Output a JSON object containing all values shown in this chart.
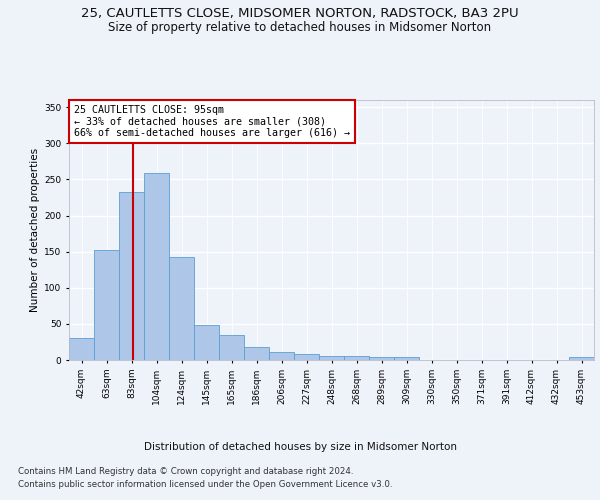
{
  "title1": "25, CAUTLETTS CLOSE, MIDSOMER NORTON, RADSTOCK, BA3 2PU",
  "title2": "Size of property relative to detached houses in Midsomer Norton",
  "xlabel": "Distribution of detached houses by size in Midsomer Norton",
  "ylabel": "Number of detached properties",
  "footer1": "Contains HM Land Registry data © Crown copyright and database right 2024.",
  "footer2": "Contains public sector information licensed under the Open Government Licence v3.0.",
  "annotation_title": "25 CAUTLETTS CLOSE: 95sqm",
  "annotation_line1": "← 33% of detached houses are smaller (308)",
  "annotation_line2": "66% of semi-detached houses are larger (616) →",
  "bar_labels": [
    "42sqm",
    "63sqm",
    "83sqm",
    "104sqm",
    "124sqm",
    "145sqm",
    "165sqm",
    "186sqm",
    "206sqm",
    "227sqm",
    "248sqm",
    "268sqm",
    "289sqm",
    "309sqm",
    "330sqm",
    "350sqm",
    "371sqm",
    "391sqm",
    "412sqm",
    "432sqm",
    "453sqm"
  ],
  "bar_values": [
    30,
    153,
    232,
    259,
    143,
    48,
    35,
    18,
    11,
    8,
    5,
    6,
    4,
    4,
    0,
    0,
    0,
    0,
    0,
    0,
    4
  ],
  "bar_color": "#aec6e8",
  "bar_edge_color": "#5a9fd4",
  "ylim": [
    0,
    360
  ],
  "yticks": [
    0,
    50,
    100,
    150,
    200,
    250,
    300,
    350
  ],
  "bg_color": "#eef2f9",
  "plot_bg_color": "#eef2f9",
  "grid_color": "#ffffff",
  "annotation_box_color": "#ffffff",
  "annotation_box_edge": "#cc0000",
  "marker_line_color": "#cc0000",
  "title1_fontsize": 9.5,
  "title2_fontsize": 8.5,
  "axis_label_fontsize": 7.5,
  "tick_fontsize": 6.5,
  "annotation_fontsize": 7.2,
  "footer_fontsize": 6.2
}
